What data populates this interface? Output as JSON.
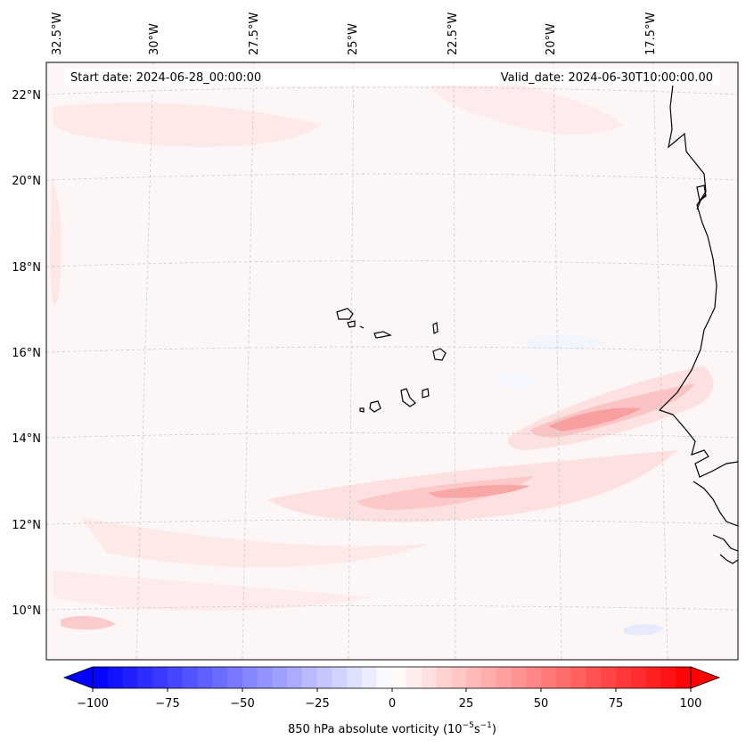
{
  "header": {
    "start_date": "Start date: 2024-06-28_00:00:00",
    "valid_date": "Valid_date: 2024-06-30T10:00:00.00"
  },
  "lon_labels": [
    "32.5°W",
    "30°W",
    "27.5°W",
    "25°W",
    "22.5°W",
    "20°W",
    "17.5°W"
  ],
  "lat_labels": [
    "22°N",
    "20°N",
    "18°N",
    "16°N",
    "14°N",
    "12°N",
    "10°N"
  ],
  "colorbar": {
    "ticks": [
      "−100",
      "−75",
      "−50",
      "−25",
      "0",
      "25",
      "50",
      "75",
      "100"
    ],
    "label_main": "850 hPa absolute vorticity (10",
    "label_sup1": "−5",
    "label_mid": "s",
    "label_sup2": "−1",
    "label_end": ")",
    "min": -100,
    "max": 100,
    "levels": 40,
    "low_color": "#0000ff",
    "mid_color": "#ffffff",
    "high_color": "#ff0000"
  },
  "colors": {
    "background_field": "#fdf6f6",
    "land_outline": "#000000",
    "gridline": "#c8c8c8"
  }
}
